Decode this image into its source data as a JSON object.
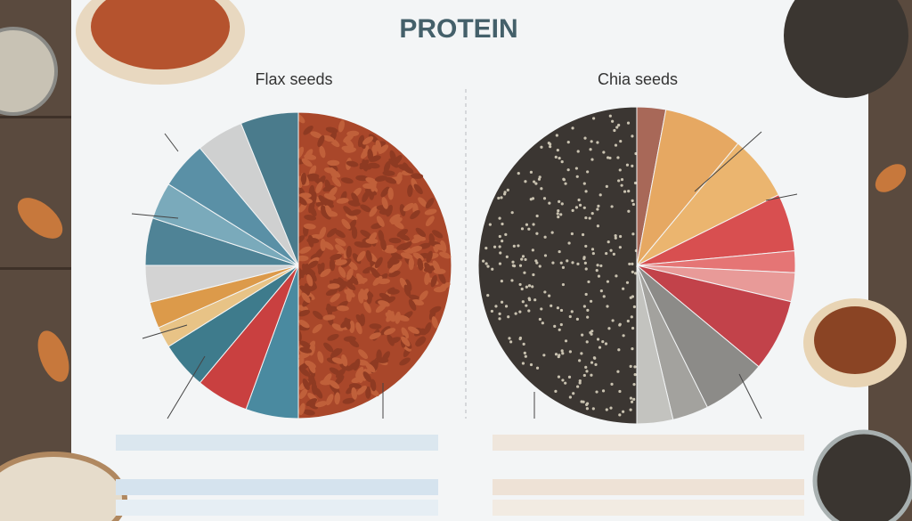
{
  "header": {
    "title": "PROTEIN"
  },
  "panels": [
    {
      "title": "Flax seeds"
    },
    {
      "title": "Chia seeds"
    }
  ]
}
